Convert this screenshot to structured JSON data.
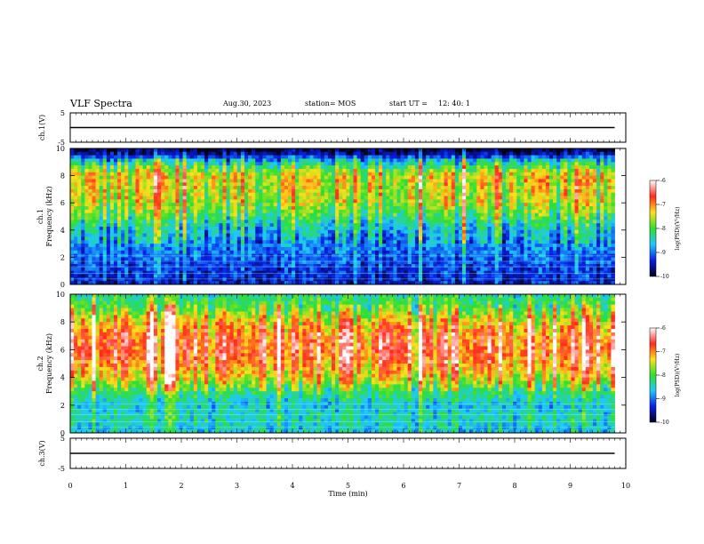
{
  "header": {
    "title": "VLF Spectra",
    "date": "Aug.30, 2023",
    "station": "station= MOS",
    "start_label": "start  UT =",
    "start_time": "12: 40: 1"
  },
  "colorbar": {
    "label": "log(PSD)(V²/Hz)",
    "ticks": [
      "-6",
      "-7",
      "-8",
      "-9",
      "-10"
    ],
    "colors": [
      "#ffffff",
      "#ff2a1f",
      "#ffe01a",
      "#2fe02f",
      "#1ec8ff",
      "#0a1ee6",
      "#000014"
    ]
  },
  "chart_data": [
    {
      "type": "line",
      "name": "ch1-voltage",
      "ylabel": "ch.1(V)",
      "ylim": [
        -5,
        5
      ],
      "yticks": [
        "5",
        "-5"
      ],
      "x": [
        0,
        9.8
      ],
      "y": [
        0,
        0
      ]
    },
    {
      "type": "heatmap",
      "name": "ch1-spectrogram",
      "panel_label": "ch.1",
      "ylabel": "Frequency (kHz)",
      "ylim": [
        0,
        10
      ],
      "yticks": [
        "0",
        "2",
        "4",
        "6",
        "8",
        "10"
      ],
      "xlim": [
        0,
        9.8
      ],
      "clim": [
        -10,
        -6
      ],
      "band_profile": [
        [
          0.3,
          -9.4
        ],
        [
          1.0,
          -9.3
        ],
        [
          2.0,
          -9.1
        ],
        [
          3.0,
          -8.9
        ],
        [
          4.0,
          -8.6
        ],
        [
          5.0,
          -8.1
        ],
        [
          6.0,
          -7.6
        ],
        [
          7.0,
          -7.5
        ],
        [
          8.0,
          -7.4
        ],
        [
          9.0,
          -8.4
        ],
        [
          9.6,
          -9.6
        ],
        [
          10.0,
          -10.0
        ]
      ]
    },
    {
      "type": "heatmap",
      "name": "ch2-spectrogram",
      "panel_label": "ch.2",
      "ylabel": "Frequency (kHz)",
      "ylim": [
        0,
        10
      ],
      "yticks": [
        "0",
        "2",
        "4",
        "6",
        "8",
        "10"
      ],
      "xlim": [
        0,
        9.8
      ],
      "clim": [
        -10,
        -6
      ],
      "band_profile": [
        [
          0.3,
          -8.6
        ],
        [
          1.0,
          -8.4
        ],
        [
          2.0,
          -8.6
        ],
        [
          3.0,
          -8.1
        ],
        [
          4.0,
          -7.3
        ],
        [
          5.0,
          -6.9
        ],
        [
          6.0,
          -6.7
        ],
        [
          7.0,
          -6.8
        ],
        [
          8.0,
          -7.2
        ],
        [
          9.0,
          -7.9
        ],
        [
          10.0,
          -8.3
        ]
      ]
    },
    {
      "type": "line",
      "name": "ch3-voltage",
      "ylabel": "ch.3(V)",
      "ylim": [
        -5,
        5
      ],
      "yticks": [
        "5",
        "-5"
      ],
      "x": [
        0,
        9.8
      ],
      "y": [
        0,
        0
      ]
    }
  ],
  "x_axis": {
    "label": "Time (min)",
    "range": [
      0,
      10
    ],
    "ticks": [
      "0",
      "1",
      "2",
      "3",
      "4",
      "5",
      "6",
      "7",
      "8",
      "9",
      "10"
    ]
  }
}
